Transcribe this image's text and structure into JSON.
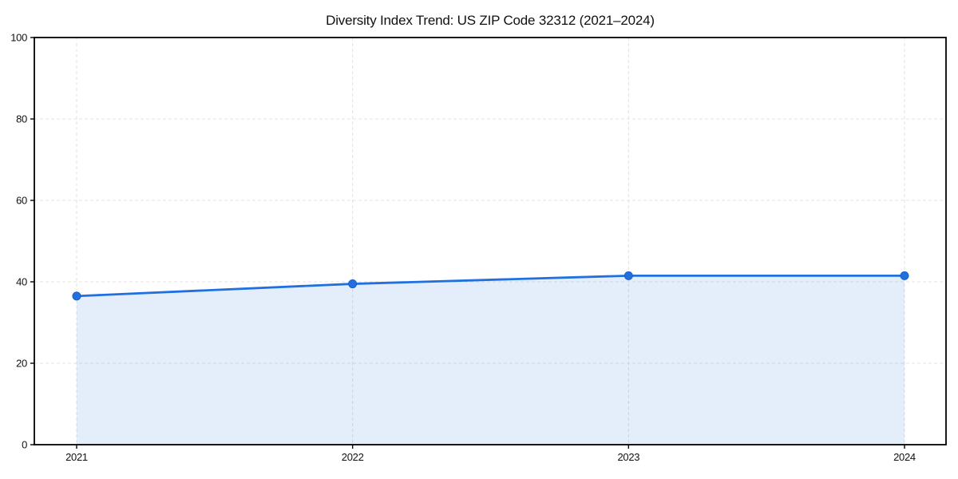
{
  "chart_data": {
    "type": "line",
    "title": "Diversity Index Trend: US ZIP Code 32312 (2021–2024)",
    "x": [
      "2021",
      "2022",
      "2023",
      "2024"
    ],
    "series": [
      {
        "name": "Diversity Index",
        "values": [
          36.5,
          39.5,
          41.5,
          41.5
        ]
      }
    ],
    "xlabel": "",
    "ylabel": "",
    "ylim": [
      0,
      100
    ],
    "yticks": [
      0,
      20,
      40,
      60,
      80,
      100
    ],
    "grid": "dashed both axes",
    "legend": "none",
    "area_fill": true,
    "colors": {
      "line": "#2170e0",
      "marker": "#2170e0",
      "marker_edge": "#1a5ecb",
      "area_fill": "rgba(33,112,224,0.12)",
      "grid": "#e3e3e3",
      "axis": "#000000",
      "background": "#ffffff",
      "title_text": "#111111"
    }
  }
}
